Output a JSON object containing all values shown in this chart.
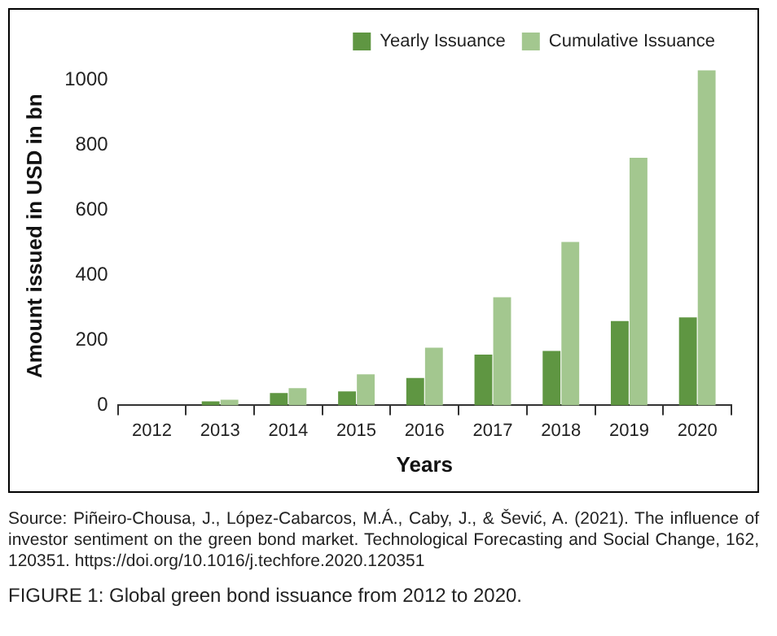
{
  "chart_data": {
    "type": "bar",
    "xlabel": "Years",
    "ylabel": "Amount issued in USD in bn",
    "categories": [
      "2012",
      "2013",
      "2014",
      "2015",
      "2016",
      "2017",
      "2018",
      "2019",
      "2020"
    ],
    "series": [
      {
        "name": "Yearly Issuance",
        "color": "#5f9642",
        "values": [
          0,
          12,
          38,
          43,
          84,
          156,
          167,
          259,
          270
        ]
      },
      {
        "name": "Cumulative Issuance",
        "color": "#a3c78f",
        "values": [
          0,
          17,
          53,
          95,
          177,
          332,
          502,
          760,
          1029
        ]
      }
    ],
    "ylim": [
      0,
      1040
    ],
    "yticks": [
      0,
      200,
      400,
      600,
      800,
      1000
    ],
    "grid": false,
    "legend": "top right",
    "annotations": [
      "Source: Piñeiro-Chousa, J., López-Cabarcos, M.Á., Caby, J., & Šević, A. (2021). The influence of investor sentiment on the green bond market. Technological Forecasting and Social Change, 162, 120351. https://doi.org/10.1016/j.techfore.2020.120351",
      "FIGURE 1: Global green bond issuance from 2012 to 2020."
    ]
  }
}
